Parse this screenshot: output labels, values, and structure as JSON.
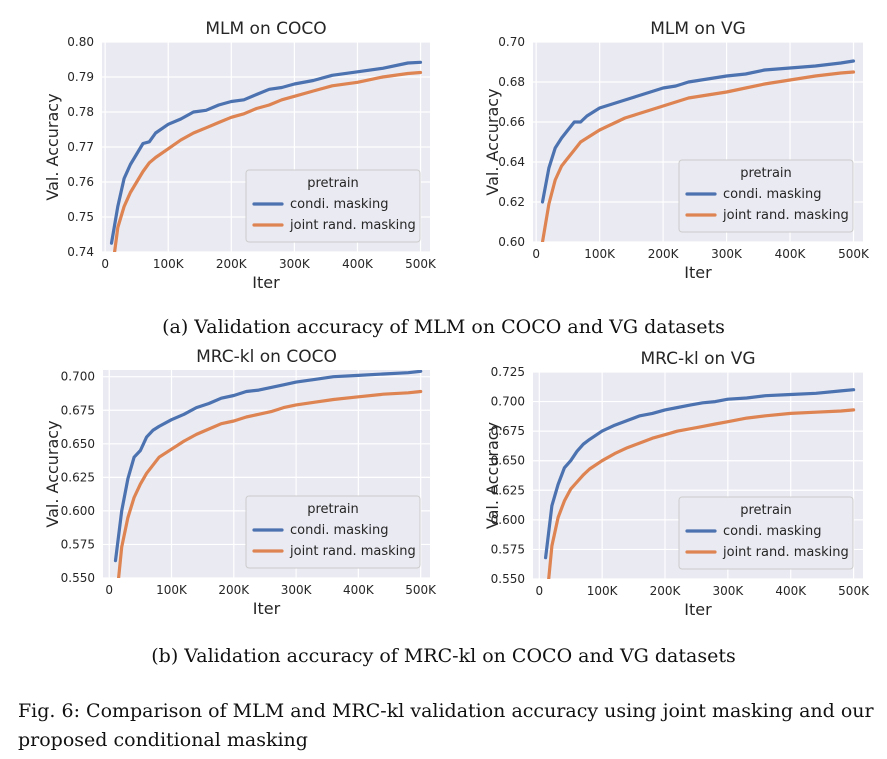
{
  "chart_data": [
    {
      "type": "line",
      "title": "MLM on COCO",
      "xlabel": "Iter",
      "ylabel": "Val. Accuracy",
      "xlim": [
        -5000,
        515000
      ],
      "ylim": [
        0.74,
        0.8
      ],
      "xticks": [
        0,
        100000,
        200000,
        300000,
        400000,
        500000
      ],
      "xtick_labels": [
        "0",
        "100K",
        "200K",
        "300K",
        "400K",
        "500K"
      ],
      "yticks": [
        0.74,
        0.75,
        0.76,
        0.77,
        0.78,
        0.79,
        0.8
      ],
      "ytick_labels": [
        "0.74",
        "0.75",
        "0.76",
        "0.77",
        "0.78",
        "0.79",
        "0.80"
      ],
      "legend_title": "pretrain",
      "legend_position": "lower-right",
      "grid": true,
      "series": [
        {
          "name": "condi. masking",
          "color": "#4c72b0",
          "x": [
            10000,
            20000,
            30000,
            40000,
            50000,
            60000,
            70000,
            80000,
            100000,
            120000,
            140000,
            160000,
            180000,
            200000,
            220000,
            240000,
            260000,
            280000,
            300000,
            330000,
            360000,
            400000,
            440000,
            480000,
            500000
          ],
          "y": [
            0.7425,
            0.753,
            0.761,
            0.765,
            0.768,
            0.771,
            0.7715,
            0.774,
            0.7765,
            0.778,
            0.78,
            0.7805,
            0.782,
            0.783,
            0.7835,
            0.785,
            0.7865,
            0.787,
            0.788,
            0.789,
            0.7905,
            0.7915,
            0.7925,
            0.794,
            0.7942
          ]
        },
        {
          "name": "joint rand. masking",
          "color": "#dd8452",
          "x": [
            15000,
            20000,
            30000,
            40000,
            50000,
            60000,
            70000,
            80000,
            100000,
            120000,
            140000,
            160000,
            180000,
            200000,
            220000,
            240000,
            260000,
            280000,
            300000,
            330000,
            360000,
            400000,
            440000,
            480000,
            500000
          ],
          "y": [
            0.74,
            0.747,
            0.753,
            0.757,
            0.76,
            0.763,
            0.7655,
            0.767,
            0.7695,
            0.772,
            0.774,
            0.7755,
            0.777,
            0.7785,
            0.7795,
            0.781,
            0.782,
            0.7835,
            0.7845,
            0.786,
            0.7875,
            0.7885,
            0.79,
            0.791,
            0.7913
          ]
        }
      ]
    },
    {
      "type": "line",
      "title": "MLM on VG",
      "xlabel": "Iter",
      "ylabel": "Val. Accuracy",
      "xlim": [
        -5000,
        515000
      ],
      "ylim": [
        0.6,
        0.7
      ],
      "xticks": [
        0,
        100000,
        200000,
        300000,
        400000,
        500000
      ],
      "xtick_labels": [
        "0",
        "100K",
        "200K",
        "300K",
        "400K",
        "500K"
      ],
      "yticks": [
        0.6,
        0.62,
        0.64,
        0.66,
        0.68,
        0.7
      ],
      "ytick_labels": [
        "0.60",
        "0.62",
        "0.64",
        "0.66",
        "0.68",
        "0.70"
      ],
      "legend_title": "pretrain",
      "legend_position": "lower-right",
      "grid": true,
      "series": [
        {
          "name": "condi. masking",
          "color": "#4c72b0",
          "x": [
            10000,
            20000,
            30000,
            40000,
            50000,
            60000,
            70000,
            80000,
            100000,
            120000,
            140000,
            160000,
            180000,
            200000,
            220000,
            240000,
            260000,
            280000,
            300000,
            330000,
            360000,
            400000,
            440000,
            480000,
            500000
          ],
          "y": [
            0.62,
            0.637,
            0.647,
            0.652,
            0.656,
            0.66,
            0.66,
            0.663,
            0.667,
            0.669,
            0.671,
            0.673,
            0.675,
            0.677,
            0.678,
            0.68,
            0.681,
            0.682,
            0.683,
            0.684,
            0.686,
            0.687,
            0.688,
            0.6895,
            0.6905
          ]
        },
        {
          "name": "joint rand. masking",
          "color": "#dd8452",
          "x": [
            10000,
            20000,
            30000,
            40000,
            50000,
            60000,
            70000,
            80000,
            100000,
            120000,
            140000,
            160000,
            180000,
            200000,
            220000,
            240000,
            260000,
            280000,
            300000,
            330000,
            360000,
            400000,
            440000,
            480000,
            500000
          ],
          "y": [
            0.6,
            0.619,
            0.631,
            0.638,
            0.642,
            0.646,
            0.65,
            0.652,
            0.656,
            0.659,
            0.662,
            0.664,
            0.666,
            0.668,
            0.67,
            0.672,
            0.673,
            0.674,
            0.675,
            0.677,
            0.679,
            0.681,
            0.683,
            0.6845,
            0.685
          ]
        }
      ]
    },
    {
      "type": "line",
      "title": "MRC-kl on COCO",
      "xlabel": "Iter",
      "ylabel": "Val. Accuracy",
      "xlim": [
        -10000,
        515000
      ],
      "ylim": [
        0.55,
        0.705
      ],
      "xticks": [
        0,
        100000,
        200000,
        300000,
        400000,
        500000
      ],
      "xtick_labels": [
        "0",
        "100K",
        "200K",
        "300K",
        "400K",
        "500K"
      ],
      "yticks": [
        0.55,
        0.575,
        0.6,
        0.625,
        0.65,
        0.675,
        0.7
      ],
      "ytick_labels": [
        "0.550",
        "0.575",
        "0.600",
        "0.625",
        "0.650",
        "0.675",
        "0.700"
      ],
      "legend_title": "pretrain",
      "legend_position": "lower-right",
      "grid": true,
      "series": [
        {
          "name": "condi. masking",
          "color": "#4c72b0",
          "x": [
            10000,
            20000,
            30000,
            40000,
            50000,
            60000,
            70000,
            80000,
            100000,
            120000,
            140000,
            160000,
            180000,
            200000,
            220000,
            240000,
            260000,
            280000,
            300000,
            330000,
            360000,
            400000,
            440000,
            480000,
            500000
          ],
          "y": [
            0.563,
            0.6,
            0.624,
            0.64,
            0.645,
            0.655,
            0.66,
            0.663,
            0.668,
            0.672,
            0.677,
            0.68,
            0.684,
            0.686,
            0.689,
            0.69,
            0.692,
            0.694,
            0.696,
            0.698,
            0.7,
            0.701,
            0.702,
            0.703,
            0.704
          ]
        },
        {
          "name": "joint rand. masking",
          "color": "#dd8452",
          "x": [
            15000,
            20000,
            30000,
            40000,
            50000,
            60000,
            70000,
            80000,
            100000,
            120000,
            140000,
            160000,
            180000,
            200000,
            220000,
            240000,
            260000,
            280000,
            300000,
            330000,
            360000,
            400000,
            440000,
            480000,
            500000
          ],
          "y": [
            0.55,
            0.573,
            0.595,
            0.61,
            0.62,
            0.628,
            0.634,
            0.64,
            0.646,
            0.652,
            0.657,
            0.661,
            0.665,
            0.667,
            0.67,
            0.672,
            0.674,
            0.677,
            0.679,
            0.681,
            0.683,
            0.685,
            0.687,
            0.688,
            0.689
          ]
        }
      ]
    },
    {
      "type": "line",
      "title": "MRC-kl on VG",
      "xlabel": "Iter",
      "ylabel": "Val. Accuracy",
      "xlim": [
        -10000,
        515000
      ],
      "ylim": [
        0.55,
        0.725
      ],
      "xticks": [
        0,
        100000,
        200000,
        300000,
        400000,
        500000
      ],
      "xtick_labels": [
        "0",
        "100K",
        "200K",
        "300K",
        "400K",
        "500K"
      ],
      "yticks": [
        0.55,
        0.575,
        0.6,
        0.625,
        0.65,
        0.675,
        0.7,
        0.725
      ],
      "ytick_labels": [
        "0.550",
        "0.575",
        "0.600",
        "0.625",
        "0.650",
        "0.675",
        "0.700",
        "0.725"
      ],
      "legend_title": "pretrain",
      "legend_position": "lower-right",
      "grid": true,
      "series": [
        {
          "name": "condi. masking",
          "color": "#4c72b0",
          "x": [
            10000,
            20000,
            30000,
            40000,
            50000,
            60000,
            70000,
            80000,
            100000,
            120000,
            140000,
            160000,
            180000,
            200000,
            220000,
            240000,
            260000,
            280000,
            300000,
            330000,
            360000,
            400000,
            440000,
            480000,
            500000
          ],
          "y": [
            0.568,
            0.612,
            0.63,
            0.644,
            0.65,
            0.658,
            0.664,
            0.668,
            0.675,
            0.68,
            0.684,
            0.688,
            0.69,
            0.693,
            0.695,
            0.697,
            0.699,
            0.7,
            0.702,
            0.703,
            0.705,
            0.706,
            0.707,
            0.709,
            0.71
          ]
        },
        {
          "name": "joint rand. masking",
          "color": "#dd8452",
          "x": [
            15000,
            20000,
            30000,
            40000,
            50000,
            60000,
            70000,
            80000,
            100000,
            120000,
            140000,
            160000,
            180000,
            200000,
            220000,
            240000,
            260000,
            280000,
            300000,
            330000,
            360000,
            400000,
            440000,
            480000,
            500000
          ],
          "y": [
            0.55,
            0.578,
            0.602,
            0.616,
            0.626,
            0.632,
            0.638,
            0.643,
            0.65,
            0.656,
            0.661,
            0.665,
            0.669,
            0.672,
            0.675,
            0.677,
            0.679,
            0.681,
            0.683,
            0.686,
            0.688,
            0.69,
            0.691,
            0.692,
            0.693
          ]
        }
      ]
    }
  ],
  "captions": {
    "sub_a": "(a) Validation accuracy of MLM on COCO and VG datasets",
    "sub_b": "(b) Validation accuracy of MRC-kl on COCO and VG datasets",
    "figure": "Fig. 6: Comparison of MLM and MRC-kl validation accuracy using joint masking and our proposed conditional masking"
  }
}
